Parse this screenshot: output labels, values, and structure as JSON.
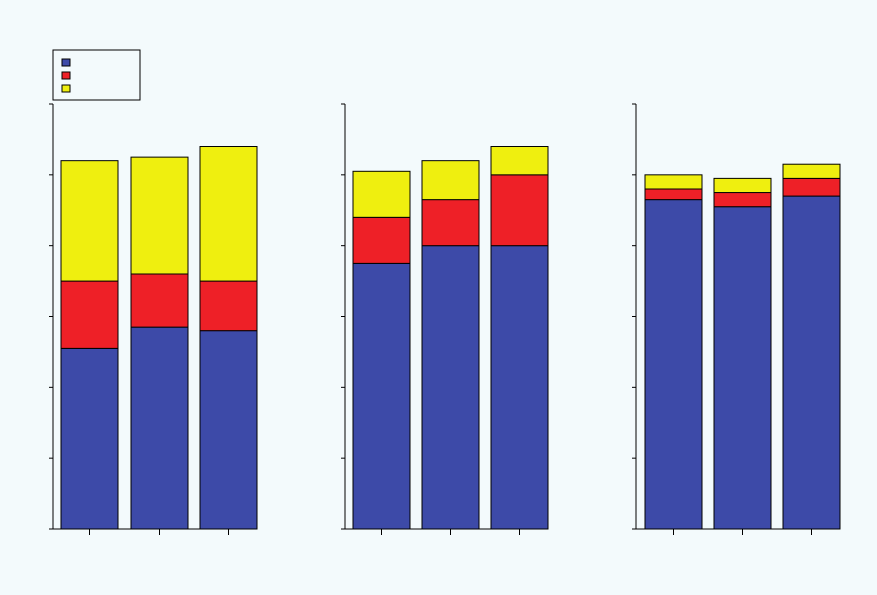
{
  "chart_data": [
    {
      "type": "bar",
      "stacked": true,
      "categories": [
        "",
        "",
        ""
      ],
      "series": [
        {
          "values": [
            51,
            57,
            56
          ]
        },
        {
          "values": [
            19,
            15,
            14
          ]
        },
        {
          "values": [
            34,
            33,
            38
          ]
        }
      ],
      "ylim": [
        0,
        120
      ],
      "title": "",
      "xlabel": "",
      "ylabel": "",
      "legend": "top-left"
    },
    {
      "type": "bar",
      "stacked": true,
      "categories": [
        "",
        "",
        ""
      ],
      "series": [
        {
          "values": [
            75,
            80,
            80
          ]
        },
        {
          "values": [
            13,
            13,
            20
          ]
        },
        {
          "values": [
            13,
            11,
            8
          ]
        }
      ],
      "ylim": [
        0,
        120
      ],
      "title": "",
      "xlabel": "",
      "ylabel": ""
    },
    {
      "type": "bar",
      "stacked": true,
      "categories": [
        "",
        "",
        ""
      ],
      "series": [
        {
          "values": [
            93,
            91,
            94
          ]
        },
        {
          "values": [
            3,
            4,
            5
          ]
        },
        {
          "values": [
            4,
            4,
            4
          ]
        }
      ],
      "ylim": [
        0,
        120
      ],
      "title": "",
      "xlabel": "",
      "ylabel": ""
    }
  ],
  "legend": {
    "entries": [
      {
        "label": "",
        "color": "#3d4aa8"
      },
      {
        "label": "",
        "color": "#ee2027"
      },
      {
        "label": "",
        "color": "#efef0f"
      }
    ]
  },
  "colors": {
    "background": "#f3fafc",
    "series": [
      "#3d4aa8",
      "#ee2027",
      "#efef0f"
    ]
  }
}
